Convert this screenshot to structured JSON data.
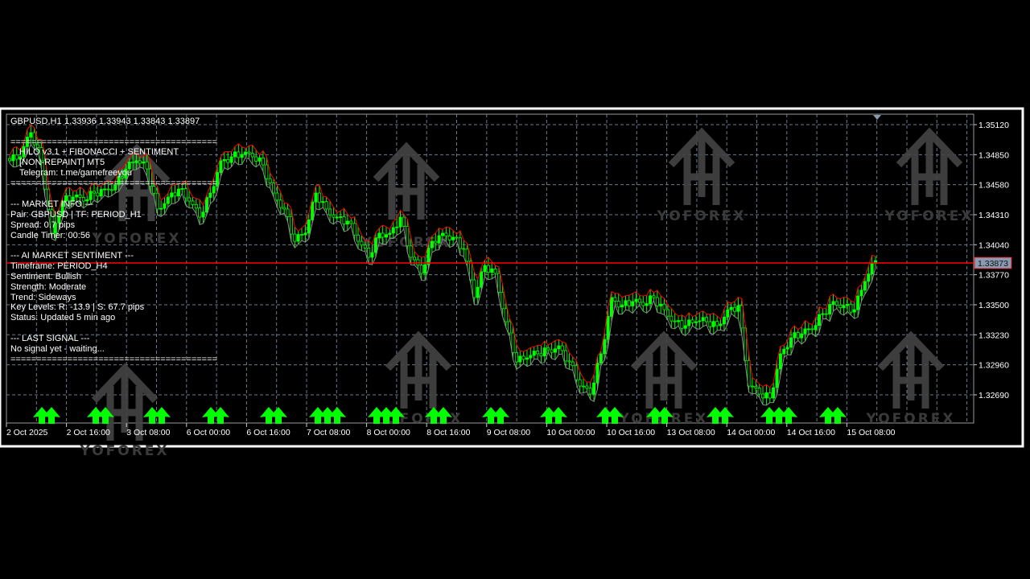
{
  "header": {
    "symbol_tf": "GBPUSD,H1",
    "ohlc": "1.33936 1.33943 1.33843 1.33897"
  },
  "overlay": {
    "separator": "========================================",
    "title_line1": "HILO v3.1 + FIBONACCI + SENTIMENT",
    "title_line2": "[NON-REPAINT] MT5",
    "telegram": "Telegram: t.me/gamefreeyou",
    "market_info_header": "--- MARKET INFO ---",
    "pair": "Pair: GBPUSD | TF: PERIOD_H1",
    "spread": "Spread: 0.7 pips",
    "candle_timer": "Candle Timer: 00:56",
    "sentiment_header": "--- AI MARKET SENTIMENT ---",
    "timeframe": "Timeframe: PERIOD_H4",
    "sentiment": "Sentiment: Bullish",
    "strength": "Strength: Moderate",
    "trend": "Trend: Sideways",
    "key_levels": "Key Levels: R: -13.9 | S: 67.7 pips",
    "status": "Status: Updated 5 min ago",
    "last_signal_header": "--- LAST SIGNAL ---",
    "last_signal": "No signal yet - waiting..."
  },
  "watermark": "YOFOREX",
  "colors": {
    "bull": "#00ff00",
    "upper_band": "#ff0000",
    "lower_band": "#8c8c8c",
    "price_line": "#ff0000",
    "grid": "#6b7a8c",
    "price_tag_bg": "#8a9ab0"
  },
  "chart_data": {
    "type": "candlestick",
    "symbol": "GBPUSD",
    "timeframe": "H1",
    "title": "GBPUSD,H1",
    "grid": true,
    "ylim": [
      1.3258,
      1.3523
    ],
    "y_ticks": [
      "1.35120",
      "1.34850",
      "1.34580",
      "1.34310",
      "1.34040",
      "1.33770",
      "1.33500",
      "1.33230",
      "1.32960",
      "1.32690"
    ],
    "x_ticks": [
      "2 Oct 2025",
      "2 Oct 16:00",
      "3 Oct 08:00",
      "6 Oct 00:00",
      "6 Oct 16:00",
      "7 Oct 08:00",
      "8 Oct 00:00",
      "8 Oct 16:00",
      "9 Oct 08:00",
      "10 Oct 00:00",
      "10 Oct 16:00",
      "13 Oct 08:00",
      "14 Oct 00:00",
      "14 Oct 16:00",
      "15 Oct 08:00"
    ],
    "current_price": 1.33873,
    "current_price_label": "1.33873",
    "approx_closes": [
      1.34795,
      1.34831,
      1.35048,
      1.34795,
      1.34144,
      1.34433,
      1.34469,
      1.34433,
      1.34505,
      1.34541,
      1.34578,
      1.34722,
      1.34795,
      1.34722,
      1.34361,
      1.34469,
      1.34541,
      1.34433,
      1.34288,
      1.34505,
      1.34795,
      1.34831,
      1.34852,
      1.34831,
      1.34758,
      1.34505,
      1.34361,
      1.34071,
      1.34144,
      1.34505,
      1.34361,
      1.34288,
      1.34252,
      1.34071,
      1.33927,
      1.34144,
      1.34144,
      1.34288,
      1.33927,
      1.33782,
      1.34071,
      1.34144,
      1.34107,
      1.34,
      1.33565,
      1.33854,
      1.33782,
      1.33348,
      1.32986,
      1.33022,
      1.33059,
      1.33095,
      1.33131,
      1.32986,
      1.32769,
      1.32697,
      1.33059,
      1.33565,
      1.33493,
      1.33529,
      1.33493,
      1.33565,
      1.33456,
      1.33348,
      1.33312,
      1.33348,
      1.33348,
      1.33312,
      1.33456,
      1.33493,
      1.32769,
      1.32697,
      1.32661,
      1.33059,
      1.33203,
      1.33239,
      1.33276,
      1.3342,
      1.33529,
      1.33493,
      1.33456,
      1.3371,
      1.33897
    ],
    "series": [
      {
        "type": "line",
        "role": "upper-band",
        "color": "#ff0000"
      },
      {
        "type": "line",
        "role": "lower-band",
        "color": "#8c8c8c"
      },
      {
        "type": "markers",
        "role": "buy-arrows",
        "color": "#00ff00"
      }
    ]
  }
}
